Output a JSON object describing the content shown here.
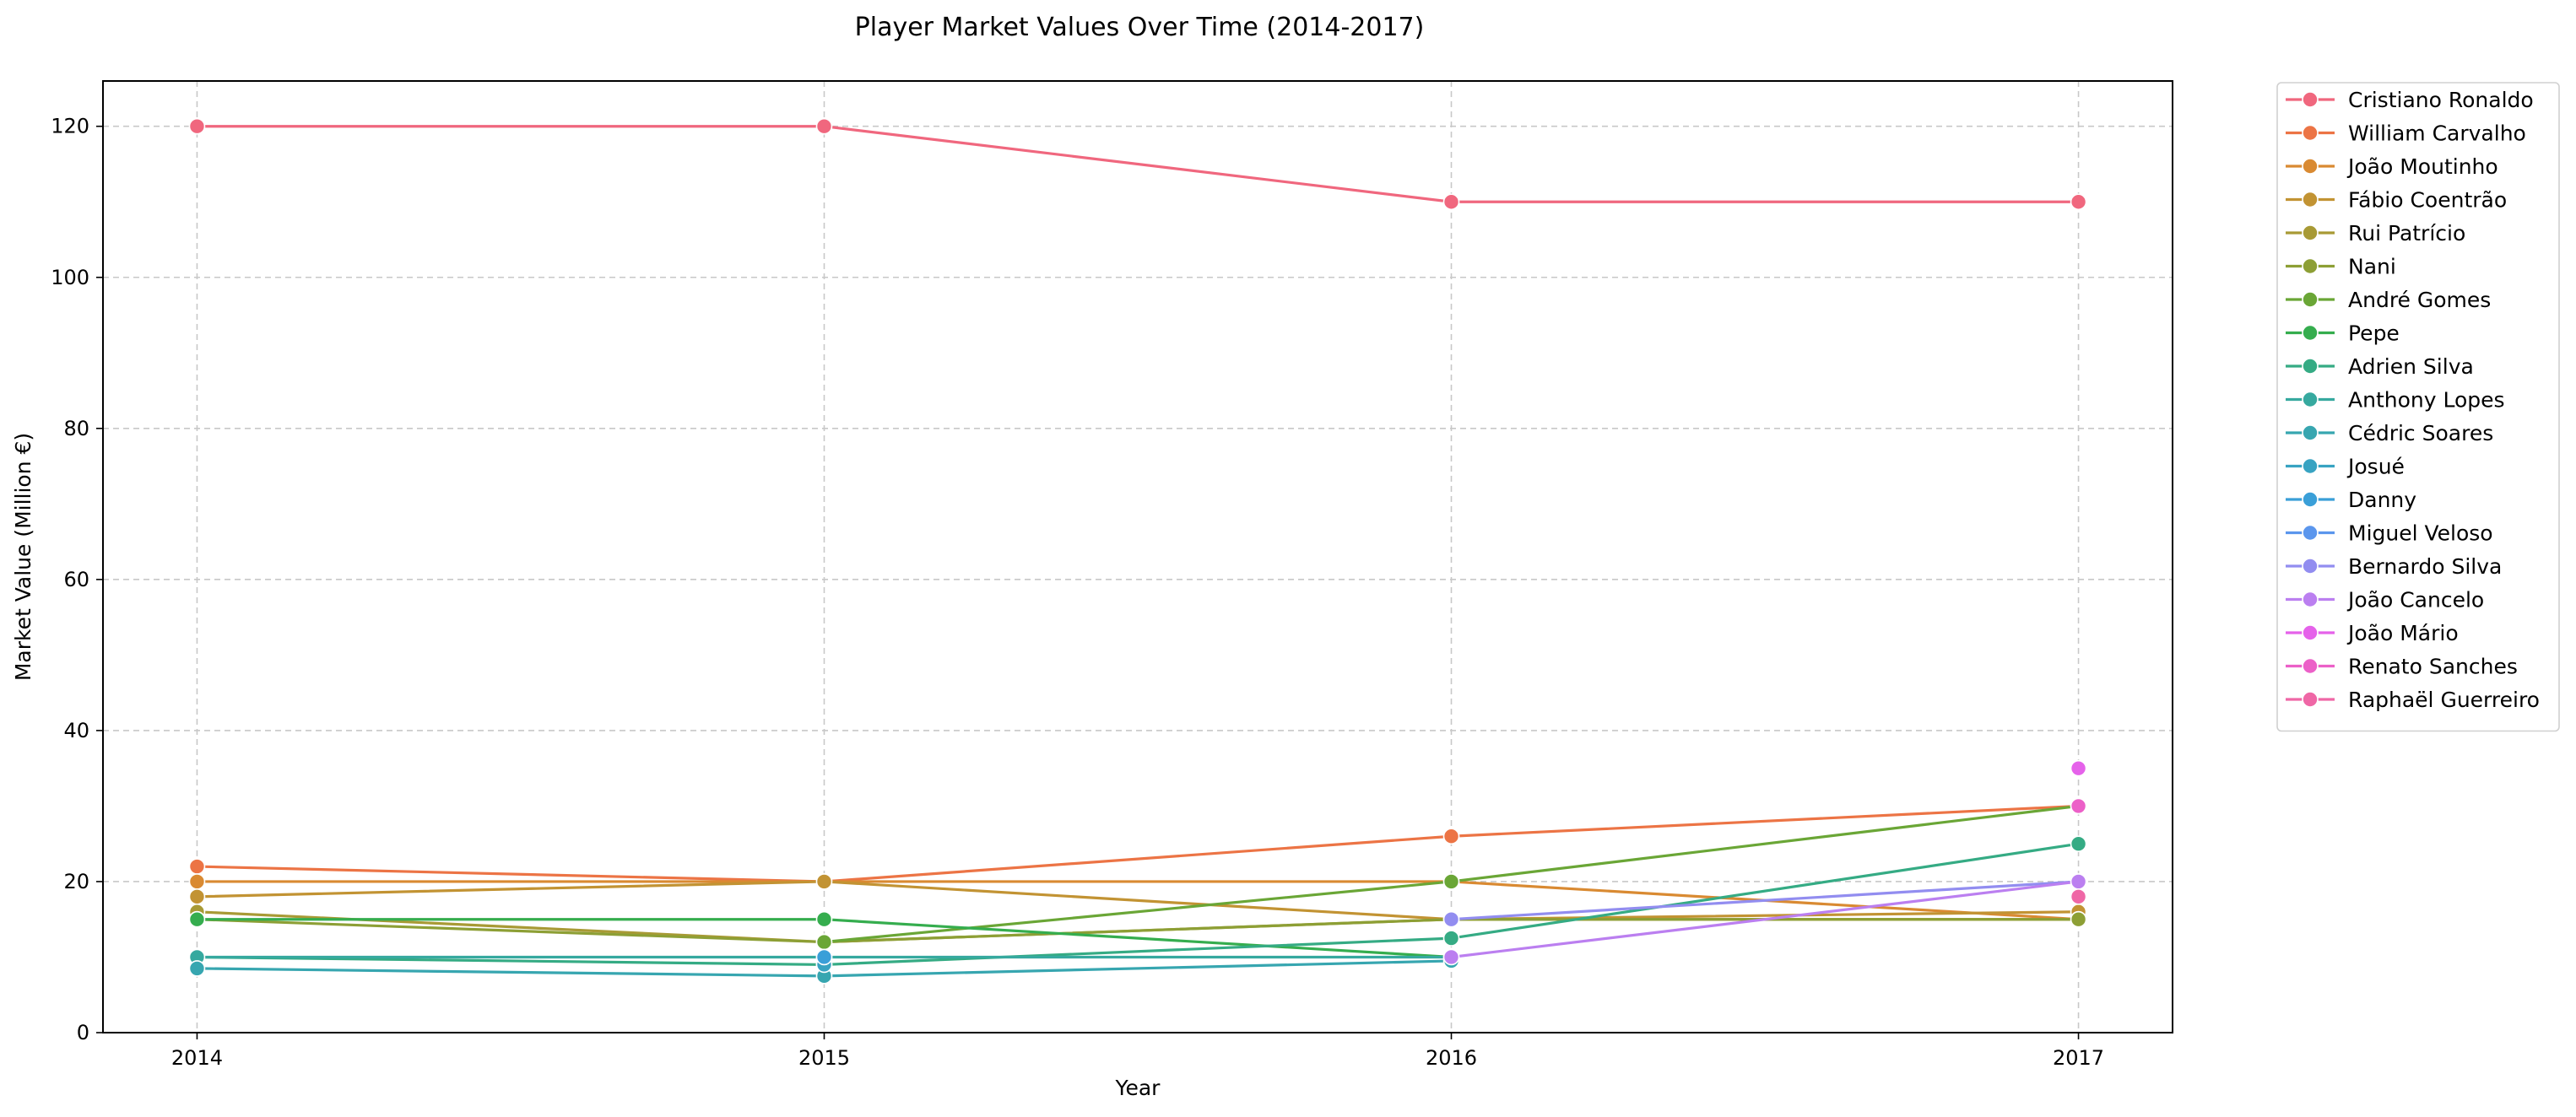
{
  "chart_data": {
    "type": "line",
    "title": "Player Market Values Over Time (2014-2017)",
    "xlabel": "Year",
    "ylabel": "Market Value (Million €)",
    "x": [
      2014,
      2015,
      2016,
      2017
    ],
    "x_tick_labels": [
      "2014",
      "2015",
      "2016",
      "2017"
    ],
    "xlim": [
      2013.85,
      2017.15
    ],
    "ylim": [
      0,
      126
    ],
    "y_ticks": [
      0,
      20,
      40,
      60,
      80,
      100,
      120
    ],
    "y_tick_labels": [
      "0",
      "20",
      "40",
      "60",
      "80",
      "100",
      "120"
    ],
    "grid": true,
    "legend_placement": "outside upper right",
    "series": [
      {
        "name": "Cristiano Ronaldo",
        "color": "#f0677e",
        "values": [
          120,
          120,
          110,
          110
        ]
      },
      {
        "name": "William Carvalho",
        "color": "#ec7445",
        "values": [
          22,
          20,
          26,
          30
        ]
      },
      {
        "name": "João Moutinho",
        "color": "#d98a32",
        "values": [
          20,
          20,
          20,
          15
        ]
      },
      {
        "name": "Fábio Coentrão",
        "color": "#c29333",
        "values": [
          18,
          20,
          15,
          16
        ]
      },
      {
        "name": "Rui Patrício",
        "color": "#a89a35",
        "values": [
          16,
          12,
          15,
          15
        ]
      },
      {
        "name": "Nani",
        "color": "#8d9f35",
        "values": [
          15,
          12,
          15,
          15
        ]
      },
      {
        "name": "André Gomes",
        "color": "#6aa636",
        "values": [
          null,
          12,
          20,
          30
        ]
      },
      {
        "name": "Pepe",
        "color": "#35ad4e",
        "values": [
          15,
          15,
          10,
          null
        ]
      },
      {
        "name": "Adrien Silva",
        "color": "#35ab84",
        "values": [
          10,
          9,
          12.5,
          25
        ]
      },
      {
        "name": "Anthony Lopes",
        "color": "#36a99f",
        "values": [
          10,
          10,
          10,
          null
        ]
      },
      {
        "name": "Cédric Soares",
        "color": "#37a6b0",
        "values": [
          8.5,
          7.5,
          9.5,
          null
        ]
      },
      {
        "name": "Josué",
        "color": "#38a3c2",
        "values": [
          null,
          9,
          null,
          null
        ]
      },
      {
        "name": "Danny",
        "color": "#3a9fd8",
        "values": [
          null,
          10,
          null,
          null
        ]
      },
      {
        "name": "Miguel Veloso",
        "color": "#5b96ed",
        "values": [
          null,
          null,
          null,
          null
        ]
      },
      {
        "name": "Bernardo Silva",
        "color": "#928df0",
        "values": [
          null,
          null,
          15,
          20
        ]
      },
      {
        "name": "João Cancelo",
        "color": "#bb7ff0",
        "values": [
          null,
          null,
          10,
          20
        ]
      },
      {
        "name": "João Mário",
        "color": "#e562ea",
        "values": [
          null,
          null,
          null,
          35
        ]
      },
      {
        "name": "Renato Sanches",
        "color": "#ec60c8",
        "values": [
          null,
          null,
          null,
          30
        ]
      },
      {
        "name": "Raphaël Guerreiro",
        "color": "#ef67a6",
        "values": [
          null,
          null,
          null,
          18
        ]
      }
    ]
  }
}
